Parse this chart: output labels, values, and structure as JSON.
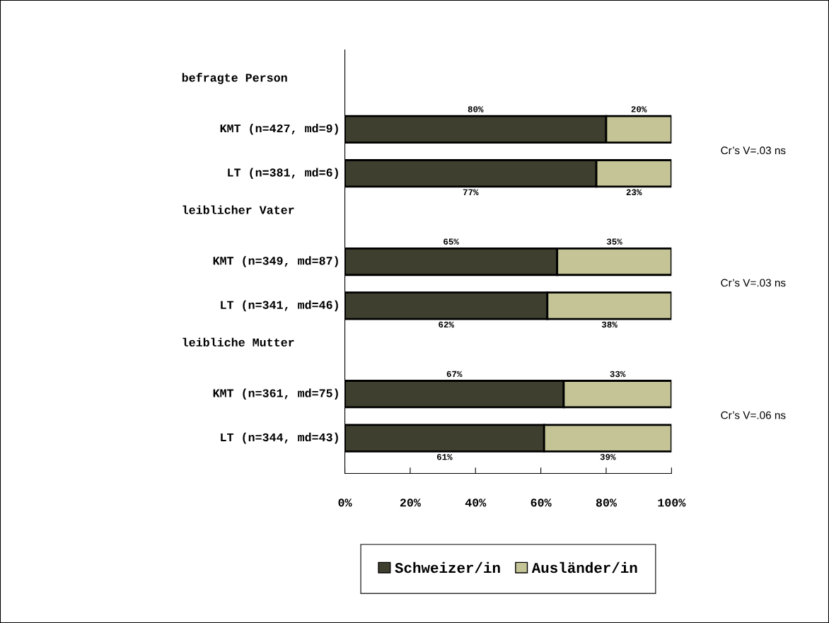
{
  "chart_data": {
    "type": "bar",
    "orientation": "horizontal",
    "stacked": true,
    "categories": [
      null,
      "KMT (n=427, md=9)",
      "LT (n=381, md=6)",
      null,
      "KMT (n=349, md=87)",
      "LT (n=341, md=46)",
      null,
      "KMT (n=361, md=75)",
      "LT (n=344, md=43)"
    ],
    "series": [
      {
        "name": "Schweizer/in",
        "color": "#3f3f2f",
        "values": [
          null,
          80,
          77,
          null,
          65,
          62,
          null,
          67,
          61
        ],
        "value_labels": [
          null,
          "80%",
          "77%",
          null,
          "65%",
          "62%",
          null,
          "67%",
          "61%"
        ]
      },
      {
        "name": "Ausländer/in",
        "color": "#c4c497",
        "values": [
          null,
          20,
          23,
          null,
          35,
          38,
          null,
          33,
          39
        ],
        "value_labels": [
          null,
          "20%",
          "23%",
          null,
          "35%",
          "38%",
          null,
          "33%",
          "39%"
        ]
      }
    ],
    "xlim": [
      0,
      100
    ],
    "xticks": [
      {
        "value": 0,
        "label": "0%"
      },
      {
        "value": 20,
        "label": "20%"
      },
      {
        "value": 40,
        "label": "40%"
      },
      {
        "value": 60,
        "label": "60%"
      },
      {
        "value": 80,
        "label": "80%"
      },
      {
        "value": 100,
        "label": "100%"
      }
    ],
    "annotations": [
      "befragte Person",
      "Cr’s V=.03 ns",
      "leiblicher Vater",
      "Cr’s V=.03 ns",
      "leibliche Mutter",
      "Cr’s V=.06 ns"
    ],
    "grid": false,
    "legend": "bottom"
  }
}
